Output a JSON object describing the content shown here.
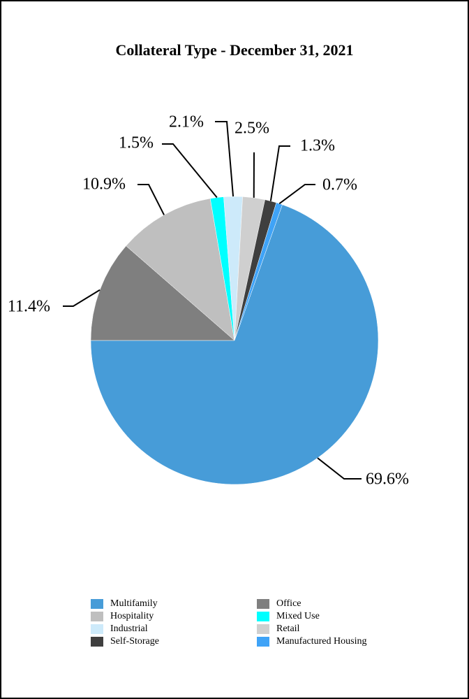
{
  "chart_data": {
    "type": "pie",
    "title": "Collateral Type - December 31, 2021",
    "categories": [
      "Multifamily",
      "Office",
      "Hospitality",
      "Mixed Use",
      "Industrial",
      "Retail",
      "Self-Storage",
      "Manufactured Housing"
    ],
    "values": [
      69.6,
      11.4,
      10.9,
      1.5,
      2.1,
      2.5,
      1.3,
      0.7
    ],
    "value_labels": [
      "69.6%",
      "11.4%",
      "10.9%",
      "1.5%",
      "2.1%",
      "2.5%",
      "1.3%",
      "0.7%"
    ],
    "colors": [
      "#479cd8",
      "#7f7f7f",
      "#bfbfbf",
      "#00ffff",
      "#cdeafa",
      "#cfcfcf",
      "#3f3f3f",
      "#3fa3f7"
    ],
    "legend": "bottom"
  }
}
